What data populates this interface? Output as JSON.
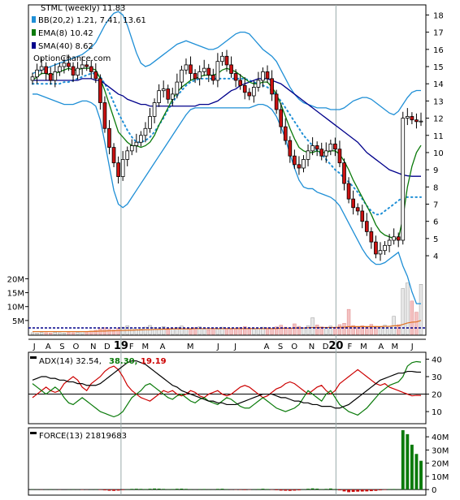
{
  "chart_data": {
    "type": "candlestick",
    "ticker_line": "STML (weekly) 11.83",
    "watermark": "OptionChance.com",
    "price_panel": {
      "y_ticks": [
        4,
        5,
        6,
        7,
        8,
        9,
        10,
        11,
        12,
        13,
        14,
        15,
        16,
        17,
        18
      ],
      "ylim": [
        3.2,
        18.4
      ],
      "legend": [
        {
          "label": "BB(20,2) 1.21, 7.41, 13.61",
          "color": "#1f8fd6"
        },
        {
          "label": "EMA(8) 10.42",
          "color": "#0a7a0a"
        },
        {
          "label": "SMA(40) 8.62",
          "color": "#00008b"
        }
      ],
      "close_series": [
        14.4,
        14.8,
        15.0,
        14.6,
        14.2,
        14.7,
        15.0,
        15.2,
        15.0,
        14.5,
        14.9,
        15.1,
        15.0,
        14.7,
        14.3,
        12.9,
        11.4,
        10.3,
        9.4,
        8.6,
        9.6,
        10.1,
        10.4,
        10.6,
        11.0,
        11.4,
        12.1,
        12.9,
        13.6,
        13.7,
        13.1,
        13.4,
        14.1,
        14.8,
        15.1,
        14.6,
        14.3,
        14.7,
        14.9,
        14.5,
        14.2,
        15.3,
        15.6,
        15.1,
        14.6,
        14.2,
        13.9,
        13.5,
        13.3,
        13.8,
        14.2,
        14.7,
        14.3,
        13.4,
        12.5,
        11.5,
        10.7,
        9.8,
        9.3,
        9.1,
        9.6,
        10.1,
        10.4,
        10.2,
        9.8,
        10.1,
        10.5,
        10.2,
        9.4,
        8.2,
        7.3,
        6.8,
        6.6,
        6.0,
        5.4,
        4.8,
        4.1,
        4.3,
        4.6,
        4.9,
        5.1,
        4.9,
        12.0,
        12.1,
        11.9,
        11.8,
        11.83
      ],
      "ema8": [
        14.2,
        14.4,
        14.6,
        14.6,
        14.5,
        14.6,
        14.7,
        14.8,
        14.9,
        14.8,
        14.8,
        14.9,
        14.9,
        14.9,
        14.8,
        14.3,
        13.6,
        12.8,
        12.0,
        11.2,
        10.9,
        10.6,
        10.4,
        10.4,
        10.3,
        10.4,
        10.6,
        11.0,
        11.6,
        12.1,
        12.6,
        13.1,
        13.5,
        13.8,
        14.0,
        14.2,
        14.3,
        14.4,
        14.5,
        14.5,
        14.5,
        14.6,
        14.8,
        14.9,
        14.8,
        14.7,
        14.5,
        14.3,
        14.1,
        14.0,
        14.0,
        14.1,
        14.1,
        13.8,
        13.4,
        12.8,
        12.1,
        11.4,
        10.8,
        10.3,
        10.1,
        10.0,
        10.0,
        10.1,
        10.0,
        10.0,
        10.1,
        10.1,
        9.9,
        9.5,
        9.0,
        8.4,
        7.9,
        7.4,
        6.9,
        6.4,
        5.8,
        5.4,
        5.2,
        5.1,
        5.0,
        5.0,
        6.2,
        8.0,
        9.2,
        10.0,
        10.42
      ],
      "sma40": [
        14.2,
        14.2,
        14.2,
        14.2,
        14.2,
        14.2,
        14.2,
        14.2,
        14.2,
        14.2,
        14.2,
        14.3,
        14.3,
        14.3,
        14.2,
        14.2,
        14.0,
        13.8,
        13.6,
        13.4,
        13.3,
        13.1,
        13.0,
        12.9,
        12.8,
        12.8,
        12.7,
        12.7,
        12.7,
        12.7,
        12.7,
        12.7,
        12.7,
        12.7,
        12.7,
        12.7,
        12.7,
        12.8,
        12.8,
        12.8,
        12.9,
        13.0,
        13.2,
        13.4,
        13.6,
        13.7,
        13.9,
        14.0,
        14.1,
        14.2,
        14.3,
        14.3,
        14.3,
        14.2,
        14.1,
        14.0,
        13.8,
        13.6,
        13.4,
        13.2,
        13.0,
        12.8,
        12.6,
        12.4,
        12.2,
        12.0,
        11.8,
        11.6,
        11.4,
        11.2,
        11.0,
        10.8,
        10.6,
        10.3,
        10.0,
        9.8,
        9.6,
        9.4,
        9.2,
        9.0,
        8.9,
        8.8,
        8.7,
        8.65,
        8.62,
        8.62,
        8.62
      ],
      "bb_mid": [
        14.0,
        14.0,
        14.0,
        14.0,
        14.0,
        14.0,
        14.0,
        14.1,
        14.1,
        14.2,
        14.3,
        14.4,
        14.5,
        14.6,
        14.6,
        14.4,
        14.0,
        13.5,
        12.9,
        12.3,
        11.8,
        11.3,
        10.9,
        10.6,
        10.6,
        10.7,
        10.9,
        11.2,
        11.6,
        12.0,
        12.5,
        12.9,
        13.3,
        13.6,
        13.9,
        14.1,
        14.2,
        14.3,
        14.3,
        14.3,
        14.3,
        14.3,
        14.3,
        14.3,
        14.3,
        14.3,
        14.3,
        14.3,
        14.2,
        14.1,
        14.0,
        13.9,
        13.8,
        13.6,
        13.3,
        13.0,
        12.6,
        12.2,
        11.8,
        11.4,
        11.0,
        10.7,
        10.4,
        10.1,
        9.9,
        9.6,
        9.3,
        9.0,
        8.8,
        8.5,
        8.3,
        8.0,
        7.7,
        7.3,
        6.9,
        6.6,
        6.4,
        6.4,
        6.6,
        6.8,
        7.0,
        7.2,
        7.41,
        7.41,
        7.41,
        7.41,
        7.41
      ],
      "bb_upper": [
        14.6,
        14.7,
        14.8,
        14.9,
        15.0,
        15.1,
        15.2,
        15.3,
        15.4,
        15.5,
        15.6,
        15.7,
        15.9,
        16.1,
        16.4,
        16.9,
        17.4,
        17.8,
        18.1,
        18.2,
        18.0,
        17.4,
        16.6,
        15.8,
        15.2,
        15.0,
        15.1,
        15.3,
        15.5,
        15.7,
        15.9,
        16.1,
        16.3,
        16.4,
        16.5,
        16.4,
        16.3,
        16.2,
        16.1,
        16.0,
        16.0,
        16.1,
        16.3,
        16.5,
        16.7,
        16.9,
        17.0,
        17.0,
        16.9,
        16.6,
        16.3,
        16.0,
        15.8,
        15.6,
        15.3,
        14.8,
        14.3,
        13.8,
        13.4,
        13.1,
        12.9,
        12.8,
        12.7,
        12.6,
        12.6,
        12.6,
        12.5,
        12.5,
        12.5,
        12.6,
        12.8,
        13.0,
        13.1,
        13.2,
        13.2,
        13.1,
        12.9,
        12.7,
        12.5,
        12.3,
        12.2,
        12.4,
        12.8,
        13.2,
        13.5,
        13.61,
        13.61
      ],
      "bb_lower": [
        13.4,
        13.4,
        13.3,
        13.2,
        13.1,
        13.0,
        12.9,
        12.8,
        12.8,
        12.8,
        12.9,
        13.0,
        13.0,
        12.9,
        12.7,
        11.9,
        10.6,
        9.2,
        7.8,
        7.0,
        6.8,
        7.0,
        7.4,
        7.8,
        8.2,
        8.6,
        9.0,
        9.4,
        9.8,
        10.2,
        10.6,
        11.0,
        11.4,
        11.8,
        12.2,
        12.5,
        12.6,
        12.6,
        12.6,
        12.6,
        12.6,
        12.6,
        12.6,
        12.6,
        12.6,
        12.6,
        12.6,
        12.6,
        12.6,
        12.7,
        12.8,
        12.8,
        12.7,
        12.5,
        12.1,
        11.5,
        10.8,
        9.9,
        9.1,
        8.4,
        8.0,
        7.9,
        7.9,
        7.7,
        7.6,
        7.5,
        7.4,
        7.2,
        6.9,
        6.4,
        5.9,
        5.4,
        4.9,
        4.4,
        4.0,
        3.7,
        3.5,
        3.5,
        3.6,
        3.8,
        4.0,
        4.2,
        3.4,
        2.8,
        1.9,
        1.21,
        1.21
      ]
    },
    "volume_panel": {
      "y_ticks": [
        "5M",
        "10M",
        "15M",
        "20M"
      ],
      "ylim": [
        0,
        21
      ],
      "volume_m": [
        0.6,
        0.5,
        0.7,
        0.6,
        0.5,
        0.8,
        0.6,
        0.5,
        0.7,
        0.6,
        0.8,
        1.0,
        0.9,
        1.2,
        1.5,
        2.0,
        2.4,
        1.9,
        1.6,
        2.2,
        2.6,
        3.1,
        2.3,
        1.8,
        2.0,
        2.6,
        3.2,
        2.4,
        2.1,
        2.8,
        2.2,
        1.9,
        2.5,
        3.0,
        2.1,
        1.8,
        2.4,
        2.7,
        2.0,
        1.7,
        2.1,
        1.9,
        2.6,
        2.2,
        1.8,
        2.0,
        2.5,
        2.8,
        2.3,
        1.9,
        2.2,
        2.6,
        2.4,
        2.0,
        2.7,
        3.3,
        2.6,
        2.2,
        3.8,
        2.9,
        2.4,
        3.1,
        6.0,
        3.4,
        2.7,
        2.5,
        3.0,
        2.6,
        3.5,
        4.0,
        9.0,
        3.2,
        2.8,
        3.1,
        2.5,
        3.6,
        2.9,
        2.7,
        3.3,
        3.0,
        6.5,
        3.5,
        16.5,
        18.5,
        12.0,
        8.0,
        18.0
      ],
      "avg_m": [
        1.0,
        1.0,
        1.0,
        1.0,
        1.0,
        1.0,
        1.0,
        1.0,
        1.0,
        1.0,
        1.0,
        1.0,
        1.0,
        1.1,
        1.1,
        1.2,
        1.2,
        1.3,
        1.3,
        1.4,
        1.4,
        1.5,
        1.5,
        1.6,
        1.6,
        1.7,
        1.7,
        1.8,
        1.8,
        1.9,
        1.9,
        2.0,
        2.0,
        2.0,
        2.0,
        2.0,
        2.1,
        2.1,
        2.1,
        2.1,
        2.1,
        2.1,
        2.1,
        2.1,
        2.1,
        2.1,
        2.1,
        2.1,
        2.1,
        2.1,
        2.1,
        2.1,
        2.1,
        2.1,
        2.1,
        2.2,
        2.2,
        2.2,
        2.3,
        2.3,
        2.3,
        2.4,
        2.5,
        2.5,
        2.5,
        2.5,
        2.5,
        2.5,
        2.6,
        2.6,
        2.8,
        2.8,
        2.8,
        2.8,
        2.8,
        2.8,
        2.8,
        2.8,
        2.9,
        2.9,
        3.1,
        3.1,
        3.6,
        4.1,
        4.4,
        4.5,
        5.0
      ]
    },
    "x_axis": {
      "labels": [
        "J",
        "A",
        "S",
        "O",
        "N",
        "D",
        "19",
        "F",
        "M",
        "A",
        "M",
        "J",
        "J",
        "A",
        "S",
        "O",
        "N",
        "D",
        "20",
        "F",
        "M",
        "A",
        "M",
        "J"
      ],
      "label_week": [
        1,
        5,
        9,
        13,
        18,
        22,
        26,
        29,
        33,
        38,
        46,
        54,
        59,
        68,
        72,
        76,
        81,
        85,
        88,
        92,
        96,
        101,
        105,
        110
      ],
      "bold_labels": [
        "19",
        "20"
      ],
      "year_week": [
        26,
        88
      ]
    },
    "adx_panel": {
      "title": "ADX(14) 32.54,",
      "plus_di_label": "38.30,",
      "minus_di_label": "19.19",
      "y_ticks": [
        10,
        20,
        30,
        40
      ],
      "ylim": [
        4,
        43
      ],
      "adx": [
        28,
        29,
        30,
        30,
        29,
        29,
        28,
        28,
        27,
        27,
        26,
        26,
        25,
        25,
        25,
        26,
        28,
        30,
        32,
        34,
        36,
        38,
        39,
        39,
        38,
        37,
        35,
        33,
        31,
        29,
        27,
        25,
        24,
        22,
        21,
        20,
        19,
        18,
        17,
        16,
        16,
        15,
        15,
        14,
        14,
        14,
        15,
        16,
        17,
        18,
        19,
        20,
        20,
        20,
        19,
        18,
        18,
        17,
        16,
        16,
        15,
        15,
        14,
        14,
        13,
        13,
        13,
        12,
        12,
        13,
        14,
        16,
        18,
        20,
        22,
        24,
        26,
        28,
        29,
        30,
        31,
        32,
        32,
        33,
        33,
        32.6,
        32.54
      ],
      "plus_di": [
        26,
        24,
        22,
        20,
        22,
        24,
        22,
        18,
        15,
        14,
        16,
        18,
        16,
        14,
        12,
        10,
        9,
        8,
        7,
        8,
        10,
        14,
        18,
        20,
        22,
        25,
        26,
        24,
        22,
        20,
        18,
        17,
        19,
        20,
        18,
        16,
        15,
        17,
        18,
        16,
        15,
        14,
        16,
        18,
        17,
        15,
        13,
        12,
        12,
        14,
        16,
        18,
        16,
        14,
        12,
        11,
        10,
        11,
        12,
        14,
        18,
        22,
        20,
        18,
        16,
        20,
        22,
        18,
        14,
        12,
        10,
        9,
        8,
        10,
        12,
        15,
        18,
        21,
        23,
        25,
        26,
        27,
        30,
        36,
        38,
        38.6,
        38.3
      ],
      "minus_di": [
        18,
        20,
        22,
        24,
        22,
        21,
        22,
        26,
        28,
        30,
        28,
        24,
        22,
        26,
        28,
        30,
        33,
        35,
        36,
        34,
        30,
        25,
        22,
        20,
        18,
        17,
        16,
        18,
        20,
        22,
        21,
        22,
        20,
        19,
        20,
        22,
        21,
        19,
        18,
        20,
        21,
        22,
        20,
        19,
        20,
        22,
        24,
        25,
        24,
        22,
        20,
        18,
        19,
        21,
        23,
        24,
        26,
        27,
        26,
        24,
        22,
        20,
        22,
        24,
        25,
        22,
        20,
        22,
        26,
        28,
        30,
        32,
        34,
        32,
        30,
        28,
        26,
        25,
        26,
        24,
        23,
        22,
        21,
        20,
        19,
        19.3,
        19.19
      ]
    },
    "force_panel": {
      "title": "FORCE(13) 21819683",
      "y_ticks": [
        "0",
        "10M",
        "20M",
        "30M",
        "40M"
      ],
      "ylim": [
        -3,
        45
      ],
      "force_m": [
        0.2,
        0.1,
        -0.1,
        0.1,
        0.2,
        0.1,
        -0.1,
        0.0,
        0.1,
        0.2,
        0.1,
        -0.2,
        -0.1,
        0.1,
        0.2,
        -0.3,
        -0.6,
        -0.9,
        -1.0,
        -0.8,
        -0.4,
        0.2,
        0.5,
        0.6,
        0.5,
        0.4,
        0.6,
        0.8,
        0.7,
        0.5,
        0.3,
        0.4,
        0.6,
        0.7,
        0.5,
        0.2,
        0.1,
        0.3,
        0.4,
        0.2,
        0.1,
        0.5,
        0.6,
        0.3,
        -0.1,
        -0.2,
        -0.3,
        -0.4,
        -0.2,
        0.2,
        0.4,
        0.6,
        0.4,
        -0.2,
        -0.5,
        -0.8,
        -0.9,
        -1.0,
        -0.8,
        -0.6,
        0.2,
        0.6,
        0.9,
        0.7,
        0.3,
        0.5,
        0.8,
        0.4,
        -0.6,
        -1.4,
        -2.0,
        -1.8,
        -1.6,
        -1.5,
        -1.4,
        -1.2,
        -1.0,
        -0.6,
        -0.3,
        0.3,
        0.4,
        0.2,
        45.0,
        42.0,
        34.0,
        27.0,
        21.82
      ]
    }
  }
}
